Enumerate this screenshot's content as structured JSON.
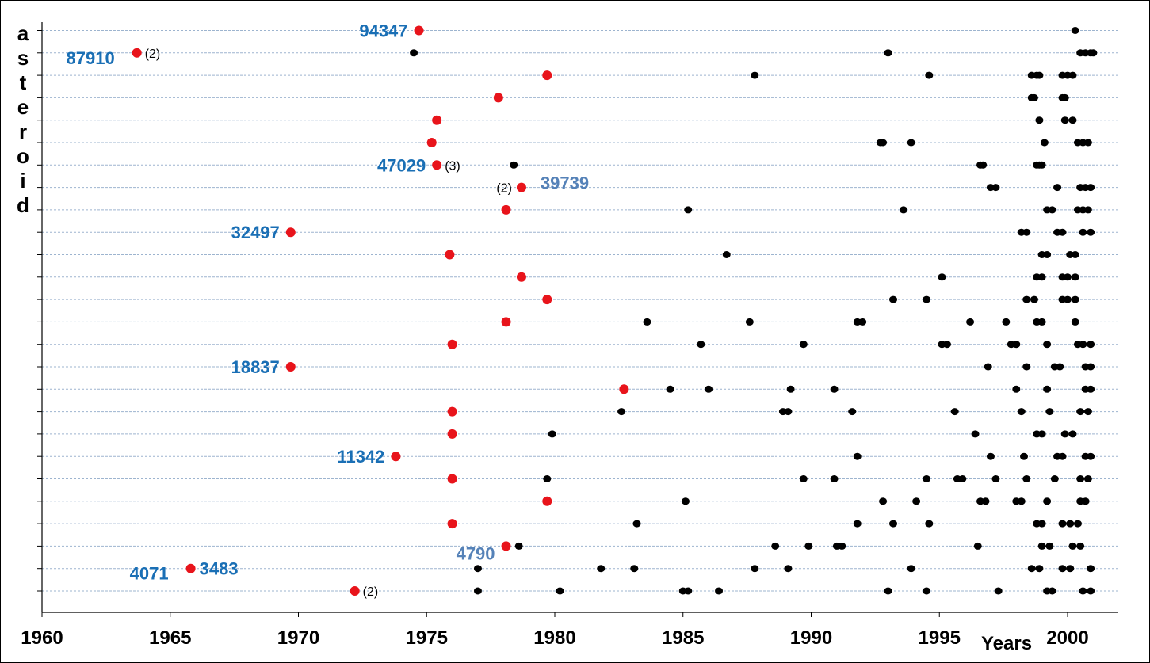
{
  "chart_data": {
    "type": "scatter",
    "title": "",
    "xlabel": "Years",
    "ylabel": "asteroid",
    "xlim": [
      1960,
      2002
    ],
    "xticks": [
      "1960",
      "1965",
      "1970",
      "1975",
      "1980",
      "1985",
      "1990",
      "1995",
      "2000"
    ],
    "grid": true,
    "rows": 26,
    "colors": {
      "first_observation": "#e8141b",
      "later_observation": "#000000",
      "label": "#1a6fb5",
      "label_alt": "#5582b8",
      "grid": "#9db4cf"
    },
    "first_observations": [
      {
        "row": 1,
        "year": 1974.7
      },
      {
        "row": 2,
        "year": 1963.7
      },
      {
        "row": 3,
        "year": 1979.7
      },
      {
        "row": 4,
        "year": 1977.8
      },
      {
        "row": 5,
        "year": 1975.4
      },
      {
        "row": 6,
        "year": 1975.2
      },
      {
        "row": 7,
        "year": 1975.4
      },
      {
        "row": 8,
        "year": 1978.7
      },
      {
        "row": 9,
        "year": 1978.1
      },
      {
        "row": 10,
        "year": 1969.7
      },
      {
        "row": 11,
        "year": 1975.9
      },
      {
        "row": 12,
        "year": 1978.7
      },
      {
        "row": 13,
        "year": 1979.7
      },
      {
        "row": 14,
        "year": 1978.1
      },
      {
        "row": 15,
        "year": 1976.0
      },
      {
        "row": 16,
        "year": 1969.7
      },
      {
        "row": 17,
        "year": 1982.7
      },
      {
        "row": 18,
        "year": 1976.0
      },
      {
        "row": 19,
        "year": 1976.0
      },
      {
        "row": 20,
        "year": 1973.8
      },
      {
        "row": 21,
        "year": 1976.0
      },
      {
        "row": 22,
        "year": 1979.7
      },
      {
        "row": 23,
        "year": 1976.0
      },
      {
        "row": 24,
        "year": 1978.1
      },
      {
        "row": 25,
        "year": 1965.8
      },
      {
        "row": 26,
        "year": 1972.2
      }
    ],
    "later_observations": [
      {
        "row": 1,
        "years": [
          2000.3
        ]
      },
      {
        "row": 2,
        "years": [
          1974.5,
          1993.0,
          2000.5,
          2000.7,
          2000.9,
          2001.0
        ]
      },
      {
        "row": 3,
        "years": [
          1987.8,
          1994.6,
          1998.6,
          1998.8,
          1998.9,
          1999.8,
          2000.0,
          2000.2
        ]
      },
      {
        "row": 4,
        "years": [
          1998.6,
          1998.7,
          1999.8,
          1999.9
        ]
      },
      {
        "row": 5,
        "years": [
          1998.9,
          1999.9,
          2000.2
        ]
      },
      {
        "row": 6,
        "years": [
          1992.7,
          1992.8,
          1993.9,
          1999.1,
          2000.4,
          2000.6,
          2000.8
        ]
      },
      {
        "row": 7,
        "years": [
          1978.4,
          1996.6,
          1996.7,
          1998.8,
          1998.9,
          1999.0
        ]
      },
      {
        "row": 8,
        "years": [
          1997.0,
          1997.2,
          1999.6,
          2000.5,
          2000.7,
          2000.9
        ]
      },
      {
        "row": 9,
        "years": [
          1985.2,
          1993.6,
          1999.2,
          1999.4,
          2000.4,
          2000.6,
          2000.8
        ]
      },
      {
        "row": 10,
        "years": [
          1998.2,
          1998.4,
          1999.6,
          1999.8,
          2000.6,
          2000.9
        ]
      },
      {
        "row": 11,
        "years": [
          1986.7,
          1999.0,
          1999.2,
          2000.1,
          2000.3
        ]
      },
      {
        "row": 12,
        "years": [
          1995.1,
          1998.8,
          1999.0,
          1999.8,
          2000.0,
          2000.3
        ]
      },
      {
        "row": 13,
        "years": [
          1993.2,
          1994.5,
          1998.4,
          1998.7,
          1999.8,
          2000.0,
          2000.3
        ]
      },
      {
        "row": 14,
        "years": [
          1983.6,
          1987.6,
          1991.8,
          1992.0,
          1996.2,
          1997.6,
          1998.8,
          1999.0,
          2000.3
        ]
      },
      {
        "row": 15,
        "years": [
          1985.7,
          1989.7,
          1995.1,
          1995.3,
          1997.8,
          1998.0,
          1999.2,
          2000.4,
          2000.6,
          2000.9
        ]
      },
      {
        "row": 16,
        "years": [
          1996.9,
          1998.4,
          1999.5,
          1999.7,
          2000.7,
          2000.9
        ]
      },
      {
        "row": 17,
        "years": [
          1984.5,
          1986.0,
          1989.2,
          1990.9,
          1998.0,
          1999.2,
          2000.7,
          2000.9
        ]
      },
      {
        "row": 18,
        "years": [
          1982.6,
          1988.9,
          1989.1,
          1991.6,
          1995.6,
          1998.2,
          1999.3,
          2000.5,
          2000.8
        ]
      },
      {
        "row": 19,
        "years": [
          1979.9,
          1996.4,
          1998.8,
          1999.0,
          1999.9,
          2000.2
        ]
      },
      {
        "row": 20,
        "years": [
          1991.8,
          1997.0,
          1998.3,
          1999.6,
          1999.8,
          2000.7,
          2000.9
        ]
      },
      {
        "row": 21,
        "years": [
          1979.7,
          1989.7,
          1990.9,
          1994.5,
          1995.7,
          1995.9,
          1997.2,
          1998.4,
          1999.5,
          2000.5,
          2000.8
        ]
      },
      {
        "row": 22,
        "years": [
          1985.1,
          1992.8,
          1994.1,
          1996.6,
          1996.8,
          1998.0,
          1998.2,
          1999.2,
          2000.5,
          2000.7
        ]
      },
      {
        "row": 23,
        "years": [
          1983.2,
          1991.8,
          1993.2,
          1994.6,
          1998.8,
          1999.0,
          1999.8,
          2000.1,
          2000.4
        ]
      },
      {
        "row": 24,
        "years": [
          1978.6,
          1988.6,
          1989.9,
          1991.0,
          1991.2,
          1996.5,
          1999.0,
          1999.3,
          2000.2,
          2000.5
        ]
      },
      {
        "row": 25,
        "years": [
          1977.0,
          1981.8,
          1983.1,
          1987.8,
          1989.1,
          1993.9,
          1998.6,
          1998.9,
          1999.8,
          2000.1,
          2000.9
        ]
      },
      {
        "row": 26,
        "years": [
          1977.0,
          1980.2,
          1985.0,
          1985.2,
          1986.4,
          1993.0,
          1994.5,
          1997.3,
          1999.2,
          1999.4,
          2000.6,
          2000.9
        ]
      }
    ],
    "annotations": [
      {
        "id": "94347",
        "row": 1,
        "side": "left",
        "color": "label"
      },
      {
        "id": "87910",
        "row": 2,
        "side": "farleft",
        "count": "(2)",
        "color": "label"
      },
      {
        "id": "47029",
        "row": 7,
        "side": "left",
        "count": "(3)",
        "color": "label"
      },
      {
        "id": "39739",
        "row": 8,
        "side": "right",
        "count": "(2)",
        "color": "label_alt"
      },
      {
        "id": "32497",
        "row": 10,
        "side": "left",
        "color": "label"
      },
      {
        "id": "18837",
        "row": 16,
        "side": "left",
        "color": "label"
      },
      {
        "id": "11342",
        "row": 20,
        "side": "left",
        "color": "label"
      },
      {
        "id": "4790",
        "row": 24,
        "side": "below",
        "color": "label_alt"
      },
      {
        "id": "4071",
        "row": 25,
        "side": "farleft",
        "color": "label"
      },
      {
        "id": "3483",
        "row": 25,
        "side": "aboveleft",
        "color": "label"
      },
      {
        "id": "",
        "row": 26,
        "side": "none",
        "count": "(2)",
        "color": "label"
      }
    ]
  }
}
